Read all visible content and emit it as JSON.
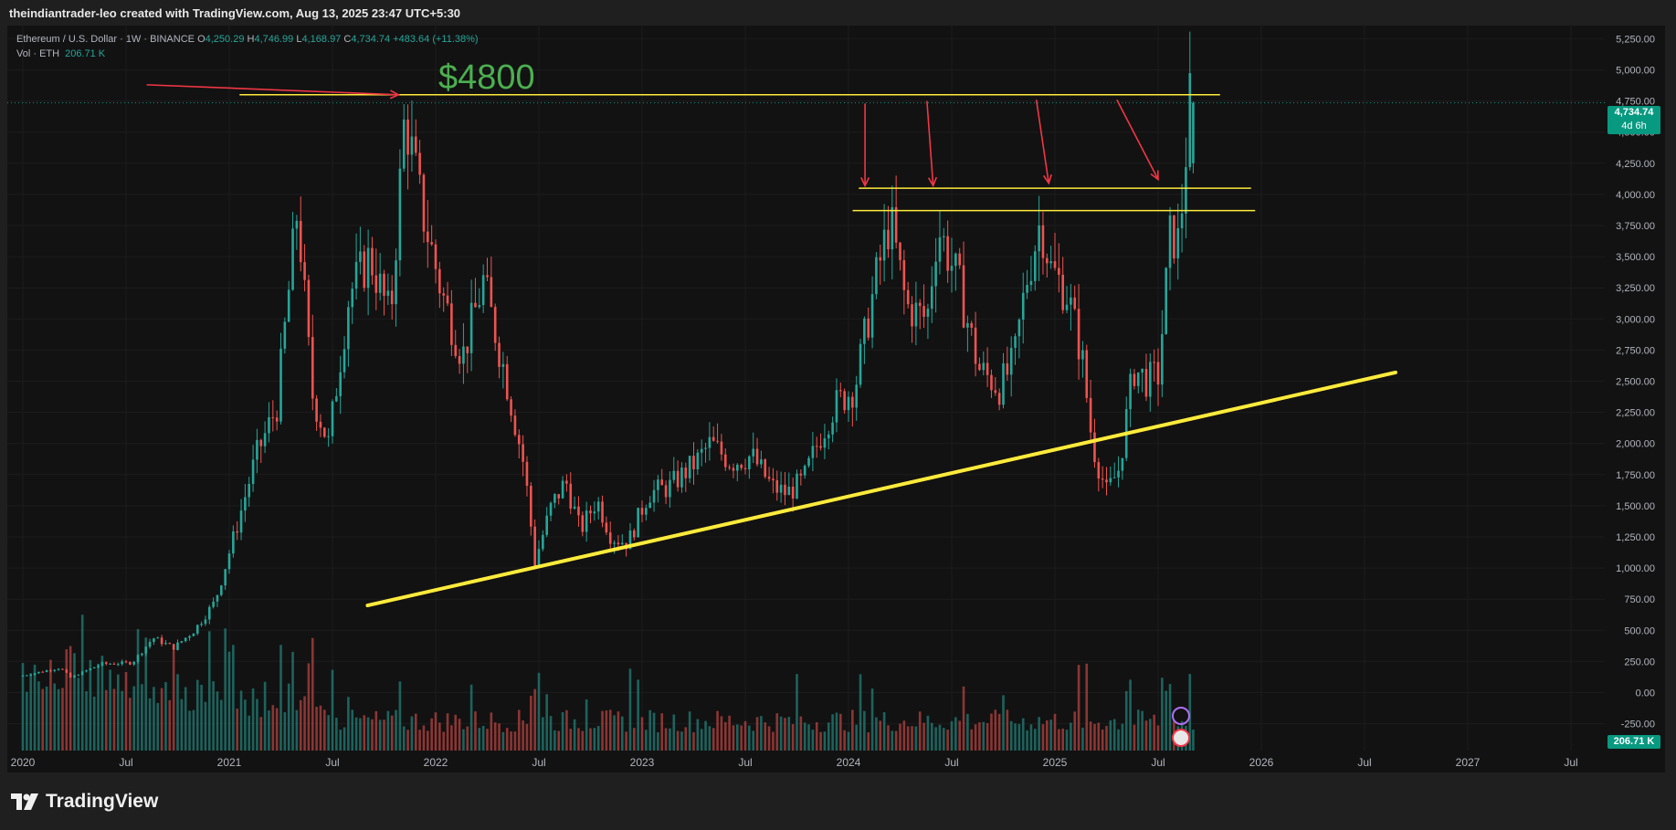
{
  "header": {
    "credit": "theindiantrader-leo created with TradingView.com, Aug 13, 2025 23:47 UTC+5:30"
  },
  "legend": {
    "symbol": "Ethereum / U.S. Dollar · 1W · BINANCE",
    "o_label": "O",
    "o_value": "4,250.29",
    "h_label": "H",
    "h_value": "4,746.99",
    "l_label": "L",
    "l_value": "4,168.97",
    "c_label": "C",
    "c_value": "4,734.74",
    "change": "+483.64 (+11.38%)",
    "vol_label": "Vol · ETH",
    "vol_value": "206.71 K"
  },
  "annotation": {
    "target_label": "$4800",
    "target_color": "#4caf50"
  },
  "price_tag": {
    "price": "4,734.74",
    "countdown": "4d 6h",
    "vol_tag": "206.71 K",
    "color": "#089981"
  },
  "colors": {
    "up": "#26a69a",
    "down": "#ef5350",
    "trendline": "#ffeb3b",
    "arrow": "#f23645",
    "background": "#121212"
  },
  "footer": {
    "brand": "TradingView"
  },
  "chart_data": {
    "type": "candlestick",
    "title": "Ethereum / U.S. Dollar · 1W · BINANCE",
    "xlabel": "",
    "ylabel": "",
    "ylim": [
      -250,
      5250
    ],
    "y_ticks": [
      "5,250.00",
      "5,000.00",
      "4,750.00",
      "4,500.00",
      "4,250.00",
      "4,000.00",
      "3,750.00",
      "3,500.00",
      "3,250.00",
      "3,000.00",
      "2,750.00",
      "2,500.00",
      "2,250.00",
      "2,000.00",
      "1,750.00",
      "1,500.00",
      "1,250.00",
      "1,000.00",
      "750.00",
      "500.00",
      "250.00",
      "0.00",
      "-250.00"
    ],
    "x_ticks": [
      {
        "label": "2020",
        "t": 2020.0
      },
      {
        "label": "Jul",
        "t": 2020.5
      },
      {
        "label": "2021",
        "t": 2021.0
      },
      {
        "label": "Jul",
        "t": 2021.5
      },
      {
        "label": "2022",
        "t": 2022.0
      },
      {
        "label": "Jul",
        "t": 2022.5
      },
      {
        "label": "2023",
        "t": 2023.0
      },
      {
        "label": "Jul",
        "t": 2023.5
      },
      {
        "label": "2024",
        "t": 2024.0
      },
      {
        "label": "Jul",
        "t": 2024.5
      },
      {
        "label": "2025",
        "t": 2025.0
      },
      {
        "label": "Jul",
        "t": 2025.5
      },
      {
        "label": "2026",
        "t": 2026.0
      },
      {
        "label": "Jul",
        "t": 2026.5
      },
      {
        "label": "2027",
        "t": 2027.0
      },
      {
        "label": "Jul",
        "t": 2027.5
      }
    ],
    "price_anchors": [
      [
        2020.0,
        130
      ],
      [
        2020.2,
        200
      ],
      [
        2020.25,
        120
      ],
      [
        2020.4,
        230
      ],
      [
        2020.55,
        240
      ],
      [
        2020.65,
        440
      ],
      [
        2020.75,
        360
      ],
      [
        2020.85,
        500
      ],
      [
        2020.95,
        730
      ],
      [
        2021.05,
        1300
      ],
      [
        2021.15,
        1900
      ],
      [
        2021.25,
        2300
      ],
      [
        2021.35,
        3900
      ],
      [
        2021.42,
        2400
      ],
      [
        2021.5,
        2000
      ],
      [
        2021.6,
        3200
      ],
      [
        2021.7,
        3500
      ],
      [
        2021.8,
        3000
      ],
      [
        2021.87,
        4650
      ],
      [
        2021.95,
        3900
      ],
      [
        2022.05,
        3200
      ],
      [
        2022.15,
        2700
      ],
      [
        2022.25,
        3300
      ],
      [
        2022.35,
        2600
      ],
      [
        2022.45,
        1800
      ],
      [
        2022.5,
        1050
      ],
      [
        2022.58,
        1500
      ],
      [
        2022.65,
        1700
      ],
      [
        2022.72,
        1300
      ],
      [
        2022.8,
        1550
      ],
      [
        2022.87,
        1250
      ],
      [
        2022.95,
        1200
      ],
      [
        2023.05,
        1600
      ],
      [
        2023.15,
        1650
      ],
      [
        2023.28,
        1850
      ],
      [
        2023.35,
        2000
      ],
      [
        2023.45,
        1850
      ],
      [
        2023.55,
        1900
      ],
      [
        2023.65,
        1650
      ],
      [
        2023.72,
        1600
      ],
      [
        2023.8,
        1700
      ],
      [
        2023.88,
        2050
      ],
      [
        2023.95,
        2300
      ],
      [
        2024.05,
        2450
      ],
      [
        2024.15,
        3300
      ],
      [
        2024.22,
        3800
      ],
      [
        2024.3,
        3100
      ],
      [
        2024.4,
        3000
      ],
      [
        2024.45,
        3750
      ],
      [
        2024.55,
        3300
      ],
      [
        2024.65,
        2600
      ],
      [
        2024.75,
        2450
      ],
      [
        2024.82,
        2650
      ],
      [
        2024.88,
        3300
      ],
      [
        2024.95,
        3800
      ],
      [
        2025.0,
        3400
      ],
      [
        2025.08,
        3200
      ],
      [
        2025.15,
        2700
      ],
      [
        2025.2,
        2000
      ],
      [
        2025.27,
        1600
      ],
      [
        2025.33,
        1800
      ],
      [
        2025.4,
        2600
      ],
      [
        2025.47,
        2500
      ],
      [
        2025.52,
        2550
      ],
      [
        2025.58,
        3700
      ],
      [
        2025.62,
        3600
      ],
      [
        2025.65,
        4250
      ],
      [
        2025.67,
        4735
      ]
    ],
    "last_candle": {
      "o": 4250.29,
      "h": 4746.99,
      "l": 4168.97,
      "c": 4734.74
    },
    "volume_unit": "K ETH",
    "drawings": {
      "horizontal_lines": [
        {
          "name": "ath-resistance",
          "price": 4800,
          "t_start": 2021.05,
          "t_end": 2025.8
        },
        {
          "name": "resistance-upper",
          "price": 4050,
          "t_start": 2024.05,
          "t_end": 2025.95
        },
        {
          "name": "resistance-lower",
          "price": 3870,
          "t_start": 2024.02,
          "t_end": 2025.97
        }
      ],
      "trendline": {
        "t1": 2021.67,
        "p1": 700,
        "t2": 2026.65,
        "p2": 2570
      },
      "arrows": [
        {
          "from_t": 2020.6,
          "from_p": 4880,
          "to_t": 2021.82,
          "to_p": 4800
        },
        {
          "from_t": 2024.08,
          "from_p": 4730,
          "to_t": 2024.08,
          "to_p": 4070
        },
        {
          "from_t": 2024.38,
          "from_p": 4750,
          "to_t": 2024.41,
          "to_p": 4070
        },
        {
          "from_t": 2024.91,
          "from_p": 4760,
          "to_t": 2024.97,
          "to_p": 4090
        },
        {
          "from_t": 2025.3,
          "from_p": 4760,
          "to_t": 2025.5,
          "to_p": 4120
        }
      ]
    }
  }
}
